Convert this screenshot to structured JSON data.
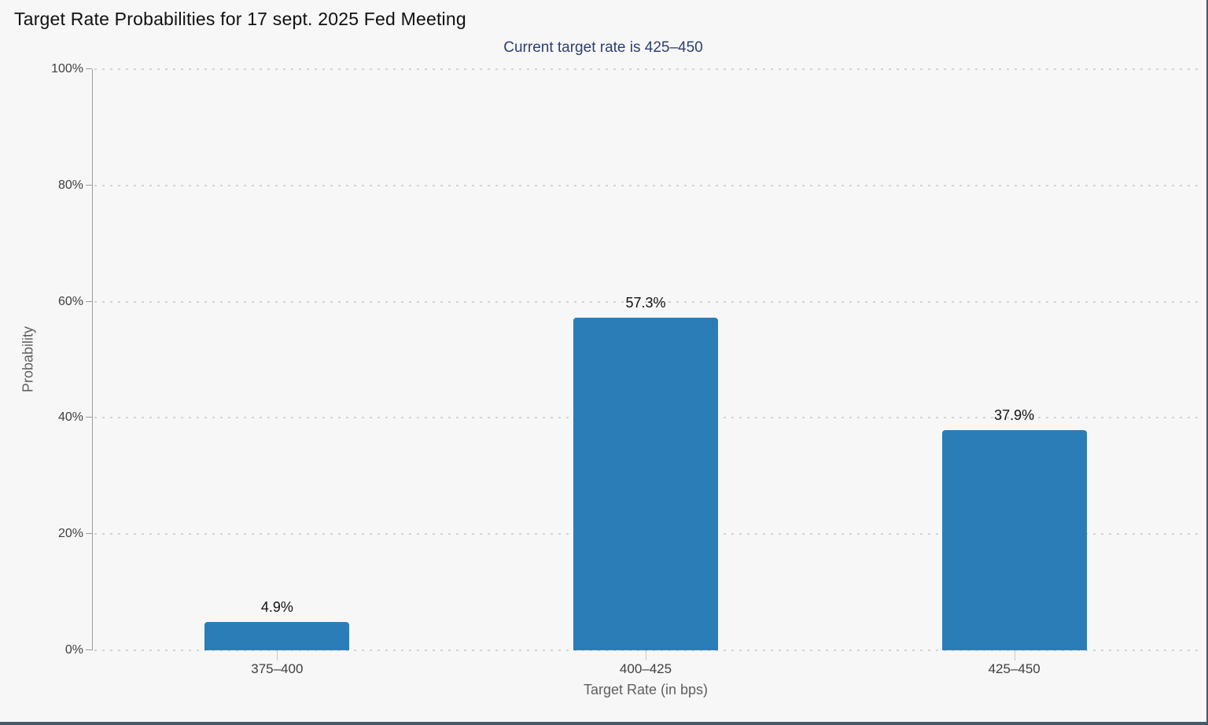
{
  "page": {
    "background_color": "#f7f7f8",
    "frame_border_color": "#455a68"
  },
  "chart_data": {
    "type": "bar",
    "title": "Target Rate Probabilities for 17 sept. 2025 Fed Meeting",
    "subtitle": "Current target rate is 425–450",
    "xlabel": "Target Rate (in bps)",
    "ylabel": "Probability",
    "categories": [
      "375–400",
      "400–425",
      "425–450"
    ],
    "values": [
      4.9,
      57.3,
      37.9
    ],
    "value_labels": [
      "4.9%",
      "57.3%",
      "37.9%"
    ],
    "ylim": [
      0,
      100
    ],
    "yticks": [
      0,
      20,
      40,
      60,
      80,
      100
    ],
    "ytick_labels": [
      "0%",
      "20%",
      "40%",
      "60%",
      "80%",
      "100%"
    ],
    "grid": "horizontal-dotted",
    "legend": "none",
    "bar_color": "#2b7db7",
    "title_color": "#101010",
    "subtitle_color": "#2e3f6e",
    "axis_color": "#9b9b9b",
    "grid_color": "#d2d2d2",
    "tick_label_color": "#3f3f3f",
    "axis_title_color": "#5f5f5f"
  }
}
